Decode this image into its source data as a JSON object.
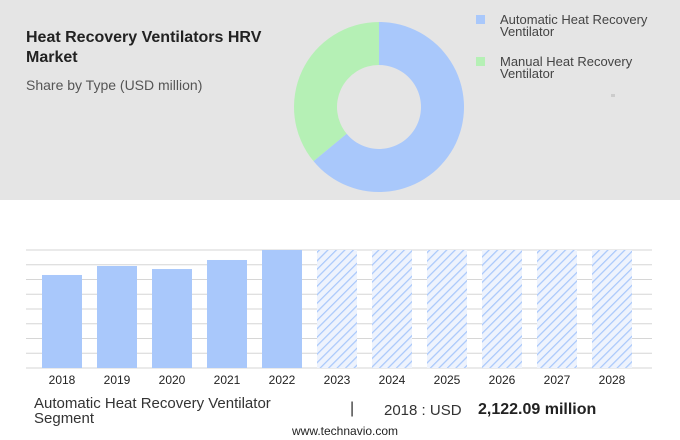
{
  "chart_data": [
    {
      "type": "pie",
      "title": "Heat Recovery Ventilators HRV Market",
      "subtitle": "Share by Type (USD million)",
      "categories": [
        "Automatic Heat Recovery Ventilator",
        "Manual Heat Recovery Ventilator"
      ],
      "values": [
        64,
        36
      ],
      "colors": [
        "#a9c8fb",
        "#b5f0b5"
      ],
      "donut": true
    },
    {
      "type": "bar",
      "categories": [
        "2018",
        "2019",
        "2020",
        "2021",
        "2022",
        "2023",
        "2024",
        "2025",
        "2026",
        "2027",
        "2028"
      ],
      "values": [
        2122.09,
        2327,
        2258,
        2464,
        2692,
        null,
        null,
        null,
        null,
        null,
        null
      ],
      "color": "#a9c8fb",
      "ylim": [
        0,
        2692
      ],
      "grid": true
    }
  ],
  "footer": {
    "segment": "Automatic Heat Recovery Ventilator Segment",
    "separator": "|",
    "year_label": "2018 : USD",
    "value": "2,122.09 million",
    "source": "www.technavio.com"
  }
}
